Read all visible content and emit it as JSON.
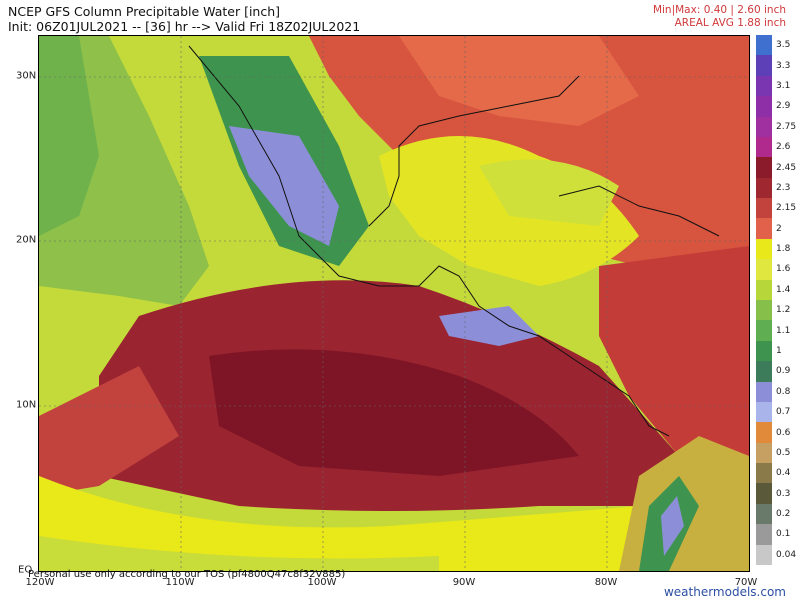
{
  "header": {
    "title": "NCEP GFS Column Precipitable Water [inch]",
    "subtitle": "Init: 06Z01JUL2021 -- [36] hr --> Valid Fri 18Z02JUL2021",
    "minmax": "Min|Max: 0.40 | 2.60 inch",
    "areal": "AREAL AVG 1.88 inch"
  },
  "axes": {
    "lat_labels": [
      "30N",
      "20N",
      "10N",
      "EQ"
    ],
    "lon_labels": [
      "120W",
      "110W",
      "100W",
      "90W",
      "80W",
      "70W"
    ]
  },
  "colorbar": {
    "values": [
      "3.5",
      "3.3",
      "3.1",
      "2.9",
      "2.75",
      "2.6",
      "2.45",
      "2.3",
      "2.15",
      "2",
      "1.8",
      "1.6",
      "1.4",
      "1.2",
      "1.1",
      "1",
      "0.9",
      "0.8",
      "0.7",
      "0.6",
      "0.5",
      "0.4",
      "0.3",
      "0.2",
      "0.1",
      "0.04"
    ],
    "colors": [
      "#3f6fcf",
      "#5d3fb8",
      "#7a35b0",
      "#8e2fa8",
      "#a02fa0",
      "#b02a8e",
      "#8b1a2a",
      "#9f2830",
      "#c2423e",
      "#e1614a",
      "#e8e81a",
      "#e0e840",
      "#b6d63a",
      "#86c04a",
      "#5fae52",
      "#3e944e",
      "#3c7c5a",
      "#8c8fd8",
      "#a8b4ea",
      "#e08a3a",
      "#c6a062",
      "#8a7a4a",
      "#5a5a3a",
      "#6a7a6a",
      "#9a9a9a",
      "#c8c8c8"
    ]
  },
  "footer": {
    "disclaimer": "Personal use only according to our TOS (pf4800Q47c8f32V885)",
    "credit": "weathermodels.com"
  }
}
